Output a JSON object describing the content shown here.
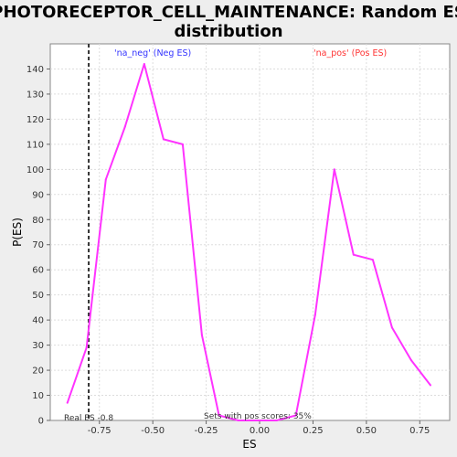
{
  "chart_data": {
    "type": "line",
    "title": "PHOTORECEPTOR_CELL_MAINTENANCE: Random ES distribution",
    "title_lines": [
      "PHOTORECEPTOR_CELL_MAINTENANCE: Random ES",
      "distribution"
    ],
    "xlabel": "ES",
    "ylabel": "P(ES)",
    "xlim": [
      -0.98,
      0.89
    ],
    "ylim": [
      0,
      150
    ],
    "x_ticks": [
      -0.75,
      -0.5,
      -0.25,
      0.0,
      0.25,
      0.5,
      0.75
    ],
    "x_tick_labels": [
      "-0.75",
      "-0.50",
      "-0.25",
      "0.00",
      "0.25",
      "0.50",
      "0.75"
    ],
    "y_ticks": [
      0,
      10,
      20,
      30,
      40,
      50,
      60,
      70,
      80,
      90,
      100,
      110,
      120,
      130,
      140
    ],
    "grid": true,
    "line_color": "#ff33ff",
    "series": [
      {
        "x": [
          -0.9,
          -0.81,
          -0.72,
          -0.63,
          -0.54,
          -0.45,
          -0.36,
          -0.27,
          -0.19,
          -0.1,
          -0.01,
          0.08,
          0.17,
          0.26,
          0.35,
          0.44,
          0.53,
          0.62,
          0.71,
          0.8
        ],
        "y": [
          7,
          29,
          96,
          117,
          142,
          112,
          110,
          34,
          2,
          0,
          0,
          0,
          2,
          42,
          100,
          66,
          64,
          37,
          24,
          14
        ]
      }
    ],
    "annotations": {
      "neg_label": "'na_neg' (Neg ES)",
      "pos_label": "'na_pos' (Pos ES)",
      "real_es_label": "Real ES -0.8",
      "real_es_value": -0.8,
      "sets_note": "Sets with pos scores: 35%",
      "neg_color": "#3333ff",
      "pos_color": "#ff3333"
    }
  }
}
